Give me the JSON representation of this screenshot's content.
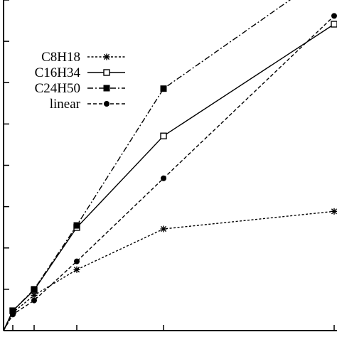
{
  "chart_data": {
    "type": "line",
    "title": "",
    "xlabel": "",
    "ylabel": "",
    "xlim": [
      0,
      16
    ],
    "ylim": [
      0,
      16
    ],
    "x_ticks": [
      0,
      1,
      2,
      4,
      8,
      16
    ],
    "y_ticks": [
      0,
      2,
      4,
      6,
      8,
      10,
      12,
      14,
      16
    ],
    "tick_labels_visible": false,
    "grid": false,
    "legend_position": "upper-left",
    "series": [
      {
        "name": "C8H18",
        "marker": "star",
        "line": "dotted",
        "x": [
          0,
          1,
          2,
          4,
          8,
          16
        ],
        "y": [
          0,
          0.87,
          1.71,
          2.95,
          4.92,
          5.77
        ]
      },
      {
        "name": "C16H34",
        "marker": "open-square",
        "line": "solid",
        "x": [
          0,
          1,
          2,
          4,
          8,
          16
        ],
        "y": [
          0,
          0.96,
          1.96,
          4.99,
          9.42,
          14.83
        ]
      },
      {
        "name": "C24H50",
        "marker": "filled-square",
        "line": "dash-dot",
        "x": [
          0,
          1,
          2,
          4,
          8,
          16
        ],
        "y": [
          0,
          0.96,
          2.0,
          5.09,
          11.71,
          17.5
        ]
      },
      {
        "name": "linear",
        "marker": "filled-circle",
        "line": "dashed",
        "x": [
          0,
          1,
          2,
          4,
          8,
          16
        ],
        "y": [
          0,
          0.78,
          1.46,
          3.35,
          7.37,
          15.23
        ]
      }
    ]
  }
}
